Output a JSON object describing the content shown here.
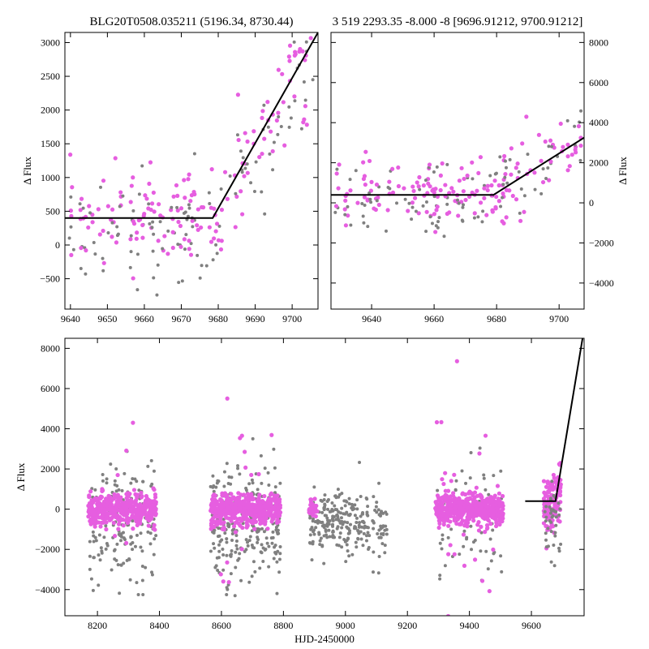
{
  "chart_data": [
    {
      "id": "top-left",
      "type": "scatter",
      "title": "BLG20T0508.035211 (5196.34, 8730.44)",
      "xlabel": "",
      "ylabel": "Δ Flux",
      "xlim": [
        9638.5,
        9707
      ],
      "ylim": [
        -950,
        3150
      ],
      "x_ticks": [
        9640,
        9650,
        9660,
        9670,
        9680,
        9690,
        9700
      ],
      "y_ticks": [
        -500,
        0,
        500,
        1000,
        1500,
        2000,
        2500,
        3000
      ],
      "y_axis_side": "left",
      "model_line": {
        "x": [
          9638.5,
          9678.5,
          9707
        ],
        "y": [
          400,
          400,
          3150
        ]
      }
    },
    {
      "id": "top-right",
      "type": "scatter",
      "title": "3 519 2293.35 -8.000 -8 [9696.91212, 9700.91212]",
      "xlabel": "",
      "ylabel": "Δ Flux",
      "xlim": [
        9627,
        9708
      ],
      "ylim": [
        -5300,
        8500
      ],
      "x_ticks": [
        9640,
        9660,
        9680,
        9700
      ],
      "y_ticks": [
        -4000,
        -2000,
        0,
        2000,
        4000,
        6000,
        8000
      ],
      "y_axis_side": "right",
      "model_line": {
        "x": [
          9627,
          9679,
          9708
        ],
        "y": [
          400,
          400,
          3250
        ]
      }
    },
    {
      "id": "bottom",
      "type": "scatter",
      "title": "",
      "xlabel": "HJD-2450000",
      "ylabel": "Δ Flux",
      "xlim": [
        8095,
        9770
      ],
      "ylim": [
        -5300,
        8500
      ],
      "x_ticks": [
        8200,
        8400,
        8600,
        8800,
        9000,
        9200,
        9400,
        9600
      ],
      "y_ticks": [
        -4000,
        -2000,
        0,
        2000,
        4000,
        6000,
        8000
      ],
      "y_axis_side": "left",
      "model_line": {
        "x": [
          9580,
          9678,
          9765
        ],
        "y": [
          400,
          400,
          8500
        ]
      }
    }
  ],
  "series_colors": {
    "magenta": "#e65ee0",
    "gray": "#808080"
  },
  "line_color": "#000000"
}
